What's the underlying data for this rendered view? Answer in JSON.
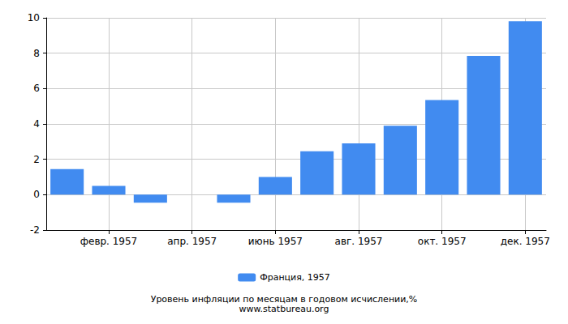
{
  "chart_data": {
    "type": "bar",
    "title": "Уровень инфляции по месяцам в годовом исчислении,%",
    "subtitle": "www.statbureau.org",
    "categories": [
      null,
      "февр. 1957",
      null,
      "апр. 1957",
      null,
      "июнь 1957",
      null,
      "авг. 1957",
      null,
      "окт. 1957",
      null,
      "дек. 1957"
    ],
    "series": [
      {
        "name": "Франция, 1957",
        "color": "#418bf0",
        "values": [
          1.45,
          0.5,
          -0.45,
          0,
          -0.45,
          1.0,
          2.45,
          2.9,
          3.9,
          5.35,
          7.85,
          9.8
        ]
      }
    ],
    "ylim": [
      -2,
      10
    ],
    "yticks": [
      -2,
      0,
      2,
      4,
      6,
      8,
      10
    ],
    "grid": true,
    "legend": "bottom"
  }
}
